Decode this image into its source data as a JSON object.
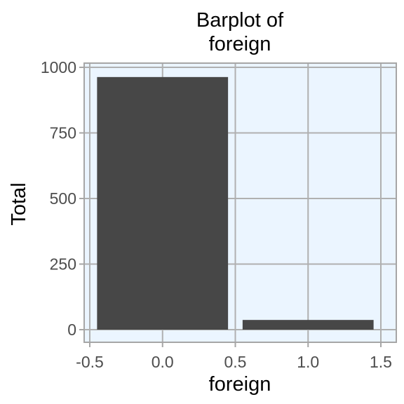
{
  "chart_data": {
    "type": "bar",
    "title_lines": [
      "Barplot of",
      "foreign"
    ],
    "xlabel": "foreign",
    "ylabel": "Total",
    "x": [
      0,
      1
    ],
    "values": [
      963,
      37
    ],
    "bar_width": 0.9,
    "xlim": [
      -0.5,
      1.5
    ],
    "ylim": [
      0,
      1000
    ],
    "xticks": [
      -0.5,
      0.0,
      0.5,
      1.0,
      1.5
    ],
    "xtick_labels": [
      "-0.5",
      "0.0",
      "0.5",
      "1.0",
      "1.5"
    ],
    "yticks": [
      0,
      250,
      500,
      750,
      1000
    ],
    "ytick_labels": [
      "0",
      "250",
      "500",
      "750",
      "1000"
    ],
    "grid": true,
    "colors": {
      "bar": "#474747",
      "panel_background": "#ebf5ff",
      "grid": "#b0b0b0",
      "border": "#a6a6a6"
    }
  }
}
